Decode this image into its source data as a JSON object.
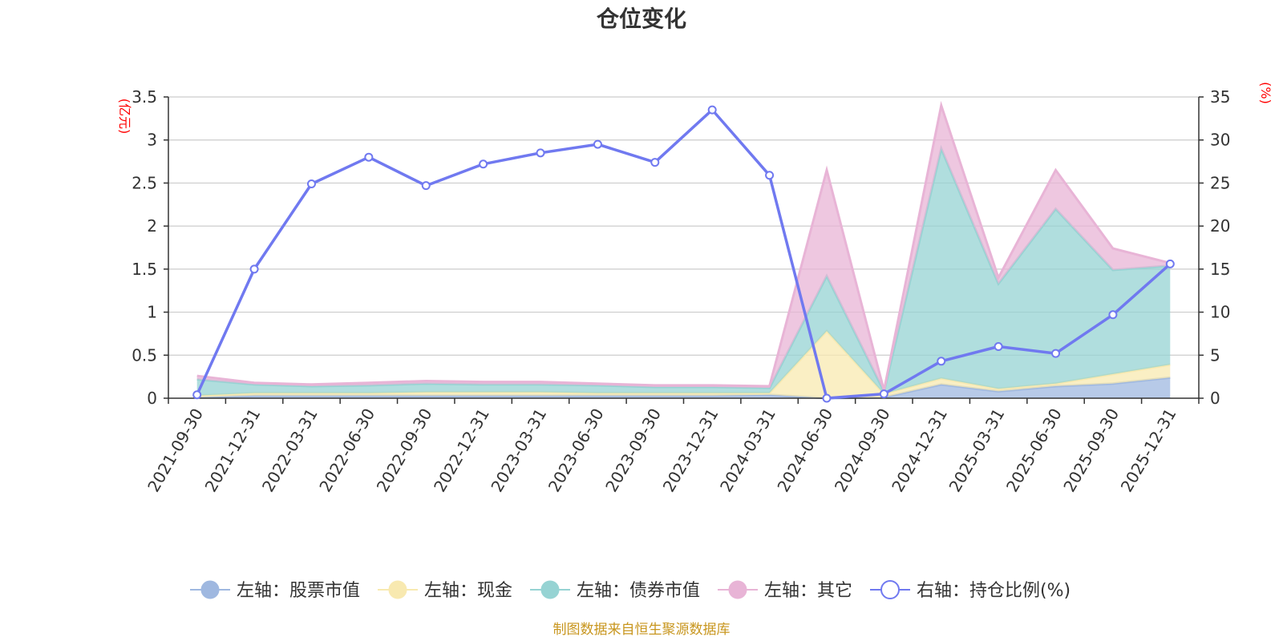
{
  "chart_data": {
    "type": "area",
    "title": "仓位变化",
    "left_unit": "(亿元)",
    "right_unit": "(%)",
    "categories": [
      "2021-09-30",
      "2021-12-31",
      "2022-03-31",
      "2022-06-30",
      "2022-09-30",
      "2022-12-31",
      "2023-03-31",
      "2023-06-30",
      "2023-09-30",
      "2023-12-31",
      "2024-03-31",
      "2024-06-30",
      "2024-09-30",
      "2024-12-31",
      "2025-03-31",
      "2025-06-30",
      "2025-09-30",
      "2025-12-31"
    ],
    "left_axis": {
      "min": 0,
      "max": 3.5,
      "ticks": [
        "0",
        "0.5",
        "1",
        "1.5",
        "2",
        "2.5",
        "3",
        "3.5"
      ]
    },
    "right_axis": {
      "min": 0,
      "max": 35,
      "ticks": [
        "0",
        "5",
        "10",
        "15",
        "20",
        "25",
        "30",
        "35"
      ]
    },
    "stacked_series": [
      {
        "name": "左轴：股票市值",
        "color": "#9fb8e0",
        "values": [
          0.01,
          0.03,
          0.03,
          0.03,
          0.03,
          0.03,
          0.03,
          0.03,
          0.03,
          0.03,
          0.04,
          0.0,
          0.01,
          0.16,
          0.08,
          0.14,
          0.17,
          0.24
        ]
      },
      {
        "name": "左轴：现金",
        "color": "#f8e9b0",
        "values": [
          0.02,
          0.03,
          0.03,
          0.03,
          0.04,
          0.04,
          0.04,
          0.03,
          0.03,
          0.03,
          0.02,
          0.78,
          0.04,
          0.07,
          0.03,
          0.03,
          0.11,
          0.15
        ]
      },
      {
        "name": "左轴：债券市值",
        "color": "#96d3d3",
        "values": [
          0.19,
          0.1,
          0.08,
          0.09,
          0.1,
          0.09,
          0.09,
          0.09,
          0.07,
          0.07,
          0.06,
          0.64,
          0.03,
          2.67,
          1.22,
          2.03,
          1.21,
          1.15
        ]
      },
      {
        "name": "左轴：其它",
        "color": "#e8b4d6",
        "values": [
          0.04,
          0.02,
          0.02,
          0.03,
          0.03,
          0.03,
          0.03,
          0.02,
          0.02,
          0.02,
          0.02,
          1.23,
          0.01,
          0.5,
          0.07,
          0.45,
          0.25,
          0.03
        ]
      }
    ],
    "line_series": {
      "name": "右轴：持仓比例(%)",
      "color": "#7079f0",
      "values": [
        0.4,
        15.0,
        24.9,
        28.0,
        24.7,
        27.2,
        28.5,
        29.5,
        27.4,
        33.5,
        25.9,
        0.0,
        0.5,
        4.3,
        6.0,
        5.2,
        9.7,
        15.6
      ]
    }
  },
  "source_note": "制图数据来自恒生聚源数据库"
}
